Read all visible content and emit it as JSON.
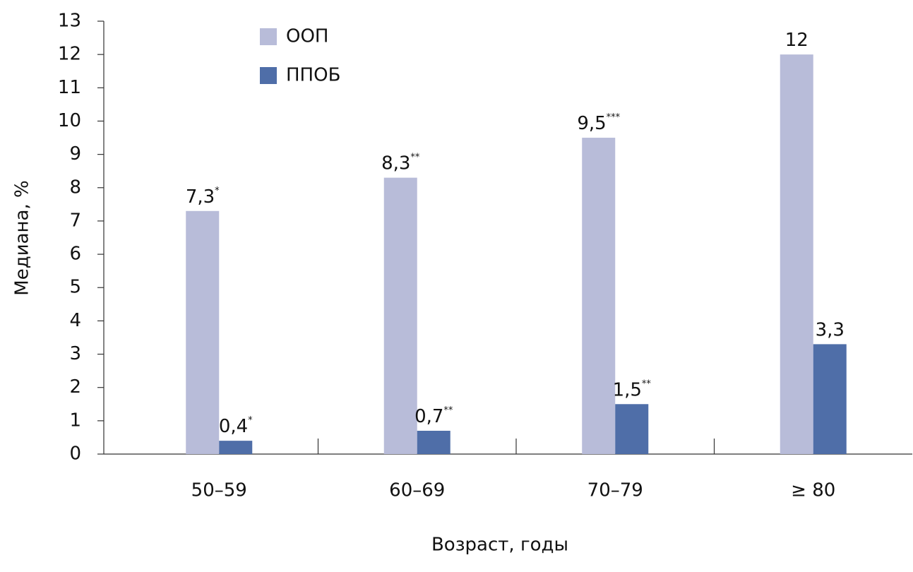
{
  "chart_data": {
    "type": "bar",
    "y_label": "Медиана, %",
    "x_label": "Возраст, годы",
    "categories": [
      "50–59",
      "60–69",
      "70–79",
      "≥ 80"
    ],
    "series": [
      {
        "name": "ООП",
        "color": "#b8bcd9",
        "values": [
          7.3,
          8.3,
          9.5,
          12
        ],
        "value_labels": [
          "7,3",
          "8,3",
          "9,5",
          "12"
        ],
        "significance": [
          "*",
          "**",
          "***",
          null
        ]
      },
      {
        "name": "ППОБ",
        "color": "#4f6ea8",
        "values": [
          0.4,
          0.7,
          1.5,
          3.3
        ],
        "value_labels": [
          "0,4",
          "0,7",
          "1,5",
          "3,3"
        ],
        "significance": [
          "*",
          "**",
          "**",
          null
        ]
      }
    ],
    "ylim": [
      0,
      13
    ],
    "yticks": [
      0,
      1,
      2,
      3,
      4,
      5,
      6,
      7,
      8,
      9,
      10,
      11,
      12,
      13
    ]
  }
}
